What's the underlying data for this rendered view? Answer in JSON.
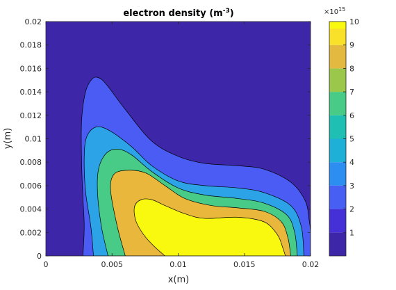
{
  "chart_data": {
    "type": "contourf",
    "title": "electron density (m",
    "title_superscript": "-3",
    "title_suffix": ")",
    "xlabel": "x(m)",
    "ylabel": "y(m)",
    "xlim": [
      0,
      0.02
    ],
    "ylim": [
      0,
      0.02
    ],
    "x_ticks": [
      0,
      0.005,
      0.01,
      0.015,
      0.02
    ],
    "x_tick_labels": [
      "0",
      "0.005",
      "0.01",
      "0.015",
      "0.02"
    ],
    "y_ticks": [
      0,
      0.002,
      0.004,
      0.006,
      0.008,
      0.01,
      0.012,
      0.014,
      0.016,
      0.018,
      0.02
    ],
    "y_tick_labels": [
      "0",
      "0.002",
      "0.004",
      "0.006",
      "0.008",
      "0.01",
      "0.012",
      "0.014",
      "0.016",
      "0.018",
      "0.02"
    ],
    "colorbar": {
      "scale_label": "×10",
      "scale_exponent": "15",
      "range": [
        0,
        10
      ],
      "ticks": [
        1,
        2,
        3,
        4,
        5,
        6,
        7,
        8,
        9,
        10
      ],
      "tick_labels": [
        "1",
        "2",
        "3",
        "4",
        "5",
        "6",
        "7",
        "8",
        "9",
        "10"
      ]
    },
    "background_color": "#3e26a8",
    "levels": [
      {
        "level": 1.5,
        "color": "#4a5cf4",
        "path": [
          [
            0.0028,
            0
          ],
          [
            0.0029,
            0.0025
          ],
          [
            0.0028,
            0.005
          ],
          [
            0.0027,
            0.008
          ],
          [
            0.0027,
            0.0115
          ],
          [
            0.003,
            0.014
          ],
          [
            0.0035,
            0.0151
          ],
          [
            0.004,
            0.0152
          ],
          [
            0.0046,
            0.0146
          ],
          [
            0.006,
            0.0125
          ],
          [
            0.008,
            0.0098
          ],
          [
            0.01,
            0.0085
          ],
          [
            0.012,
            0.0079
          ],
          [
            0.0145,
            0.0077
          ],
          [
            0.0165,
            0.0074
          ],
          [
            0.0185,
            0.0063
          ],
          [
            0.0196,
            0.0047
          ],
          [
            0.0199,
            0.003
          ],
          [
            0.02,
            0.002
          ],
          [
            0.02,
            0
          ]
        ]
      },
      {
        "level": 3,
        "color": "#2ba3e6",
        "path": [
          [
            0.0036,
            0
          ],
          [
            0.0034,
            0.0025
          ],
          [
            0.003,
            0.0055
          ],
          [
            0.0029,
            0.0085
          ],
          [
            0.0031,
            0.0102
          ],
          [
            0.0038,
            0.011
          ],
          [
            0.0048,
            0.0107
          ],
          [
            0.0065,
            0.0093
          ],
          [
            0.008,
            0.0077
          ],
          [
            0.01,
            0.0064
          ],
          [
            0.012,
            0.006
          ],
          [
            0.0145,
            0.0058
          ],
          [
            0.0165,
            0.0054
          ],
          [
            0.0185,
            0.0043
          ],
          [
            0.0193,
            0.0025
          ],
          [
            0.0195,
            0
          ]
        ]
      },
      {
        "level": 5.5,
        "color": "#48cb86",
        "path": [
          [
            0.0047,
            0
          ],
          [
            0.0042,
            0.0025
          ],
          [
            0.0039,
            0.0055
          ],
          [
            0.004,
            0.0075
          ],
          [
            0.0046,
            0.0088
          ],
          [
            0.0055,
            0.0091
          ],
          [
            0.0065,
            0.0086
          ],
          [
            0.008,
            0.0072
          ],
          [
            0.01,
            0.0058
          ],
          [
            0.012,
            0.0052
          ],
          [
            0.0145,
            0.0049
          ],
          [
            0.0165,
            0.0045
          ],
          [
            0.0182,
            0.0035
          ],
          [
            0.0188,
            0.002
          ],
          [
            0.019,
            0
          ]
        ]
      },
      {
        "level": 7.5,
        "color": "#e9b73b",
        "path": [
          [
            0.006,
            0
          ],
          [
            0.0054,
            0.0025
          ],
          [
            0.0049,
            0.0055
          ],
          [
            0.0051,
            0.0069
          ],
          [
            0.006,
            0.0073
          ],
          [
            0.0075,
            0.0071
          ],
          [
            0.009,
            0.006
          ],
          [
            0.0105,
            0.0049
          ],
          [
            0.0125,
            0.0043
          ],
          [
            0.0145,
            0.0041
          ],
          [
            0.0165,
            0.0038
          ],
          [
            0.0178,
            0.0029
          ],
          [
            0.0183,
            0.0015
          ],
          [
            0.0185,
            0
          ]
        ]
      },
      {
        "level": 9.5,
        "color": "#f9f90f",
        "path": [
          [
            0.009,
            0
          ],
          [
            0.0082,
            0.0008
          ],
          [
            0.0074,
            0.0018
          ],
          [
            0.0068,
            0.003
          ],
          [
            0.0067,
            0.0042
          ],
          [
            0.0072,
            0.0048
          ],
          [
            0.008,
            0.0048
          ],
          [
            0.009,
            0.0043
          ],
          [
            0.0105,
            0.0036
          ],
          [
            0.012,
            0.0032
          ],
          [
            0.0145,
            0.0033
          ],
          [
            0.0165,
            0.0029
          ],
          [
            0.0175,
            0.0018
          ],
          [
            0.0179,
            0.0007
          ],
          [
            0.0181,
            0
          ]
        ]
      }
    ],
    "colorbar_bands": [
      {
        "from": 0,
        "to": 1,
        "color": "#3e26a8"
      },
      {
        "from": 1,
        "to": 2,
        "color": "#4530d8"
      },
      {
        "from": 2,
        "to": 3,
        "color": "#4760f3"
      },
      {
        "from": 3,
        "to": 4,
        "color": "#2d8ef1"
      },
      {
        "from": 4,
        "to": 5,
        "color": "#1eb0d6"
      },
      {
        "from": 5,
        "to": 6,
        "color": "#1fbfb4"
      },
      {
        "from": 6,
        "to": 7,
        "color": "#48cb86"
      },
      {
        "from": 7,
        "to": 8,
        "color": "#9bc84b"
      },
      {
        "from": 8,
        "to": 9,
        "color": "#e3b93f"
      },
      {
        "from": 9,
        "to": 10,
        "color": "#f9e12a"
      },
      {
        "from": 9.7,
        "to": 10,
        "color": "#f9f90f"
      }
    ]
  }
}
